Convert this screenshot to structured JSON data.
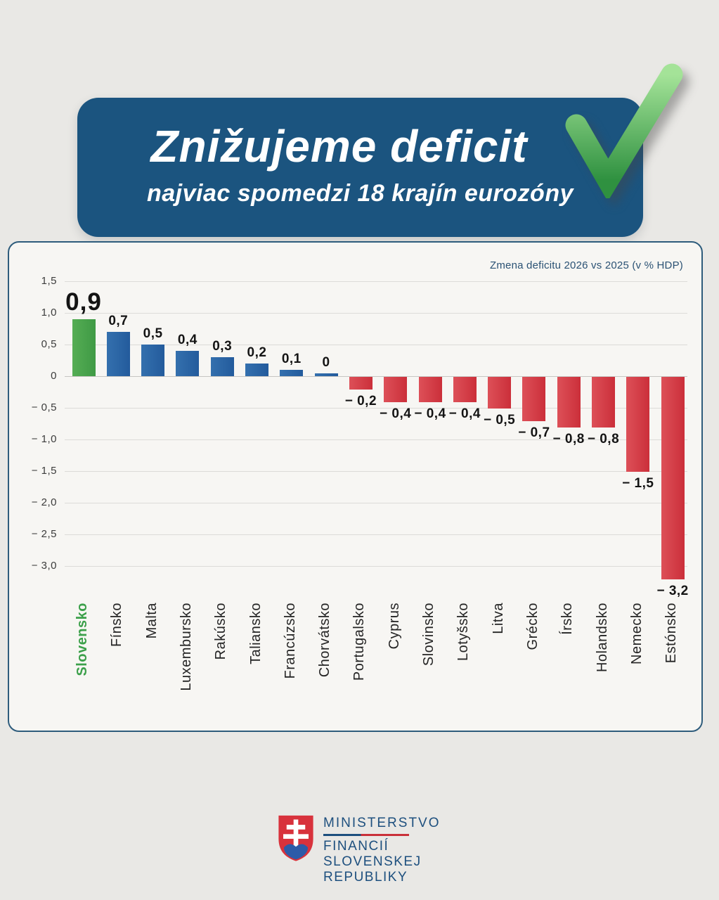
{
  "page": {
    "background": "#e9e8e5"
  },
  "header": {
    "title": "Znižujeme deficit",
    "subtitle": "najviac spomedzi 18 krajín eurozóny",
    "card_color": "#1b547f",
    "checkmark_icon": "green-checkmark",
    "checkmark_gradient": [
      "#a4e398",
      "#2f9140"
    ]
  },
  "chart_data": {
    "type": "bar",
    "title": "Zmena deficitu 2026 vs 2025 (v % HDP)",
    "categories": [
      "Slovensko",
      "Fínsko",
      "Malta",
      "Luxembursko",
      "Rakúsko",
      "Taliansko",
      "Francúzsko",
      "Chorvátsko",
      "Portugalsko",
      "Cyprus",
      "Slovinsko",
      "Lotyšsko",
      "Litva",
      "Grécko",
      "Írsko",
      "Holandsko",
      "Nemecko",
      "Estónsko"
    ],
    "values": [
      0.9,
      0.7,
      0.5,
      0.4,
      0.3,
      0.2,
      0.1,
      0,
      -0.2,
      -0.4,
      -0.4,
      -0.4,
      -0.5,
      -0.7,
      -0.8,
      -0.8,
      -1.5,
      -3.2
    ],
    "value_labels": [
      "0,9",
      "0,7",
      "0,5",
      "0,4",
      "0,3",
      "0,2",
      "0,1",
      "0",
      "− 0,2",
      "− 0,4",
      "− 0,4",
      "− 0,4",
      "− 0,5",
      "− 0,7",
      "− 0,8",
      "− 0,8",
      "− 1,5",
      "− 3,2"
    ],
    "highlight_index": 0,
    "yticks": [
      1.5,
      1.0,
      0.5,
      0,
      -0.5,
      -1.0,
      -1.5,
      -2.0,
      -2.5,
      -3.0
    ],
    "ytick_labels": [
      "1,5",
      "1,0",
      "0,5",
      "0",
      "− 0,5",
      "− 1,0",
      "− 1,5",
      "− 2,0",
      "− 2,5",
      "− 3,0"
    ],
    "ylim": [
      -3.2,
      1.5
    ],
    "grid": true,
    "legend_position": "none",
    "colors": {
      "positive": "#2a63a3",
      "negative": "#d13740",
      "highlight": "#4aa34b",
      "highlight_label": "#3ca04a",
      "gridline": "#dcdbd8",
      "zero_line": "#c6c5c2"
    }
  },
  "footer": {
    "logo_icon": "slovak-coat-of-arms",
    "line1": "MINISTERSTVO",
    "line2": "FINANCIÍ",
    "line3": "SLOVENSKEJ REPUBLIKY",
    "text_color": "#1d4f7e",
    "rule_colors": [
      "#1d4f7e",
      "#c9303a"
    ]
  }
}
